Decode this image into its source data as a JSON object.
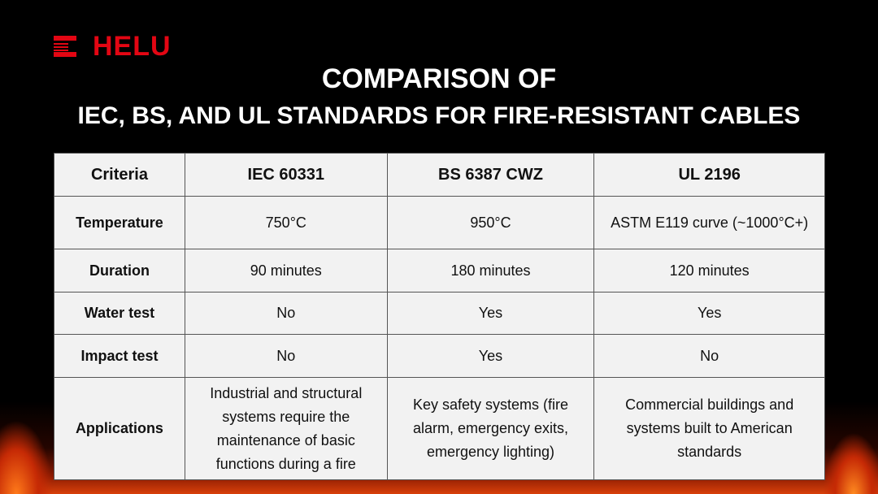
{
  "brand": {
    "name": "HELU",
    "color": "#e30613"
  },
  "title": {
    "line1": "COMPARISON OF",
    "line2": "IEC, BS, AND UL STANDARDS FOR FIRE-RESISTANT CABLES"
  },
  "table": {
    "headers": [
      "Criteria",
      "IEC 60331",
      "BS 6387 CWZ",
      "UL 2196"
    ],
    "rows": [
      [
        "Temperature",
        "750°C",
        "950°C",
        "ASTM E119 curve (~1000°C+)"
      ],
      [
        "Duration",
        "90 minutes",
        "180 minutes",
        "120 minutes"
      ],
      [
        "Water test",
        "No",
        "Yes",
        "Yes"
      ],
      [
        "Impact test",
        "No",
        "Yes",
        "No"
      ],
      [
        "Applications",
        "Industrial and structural systems require the maintenance of basic functions during a fire",
        "Key safety systems (fire alarm, emergency exits, emergency lighting)",
        "Commercial buildings and systems built to American standards"
      ]
    ]
  }
}
